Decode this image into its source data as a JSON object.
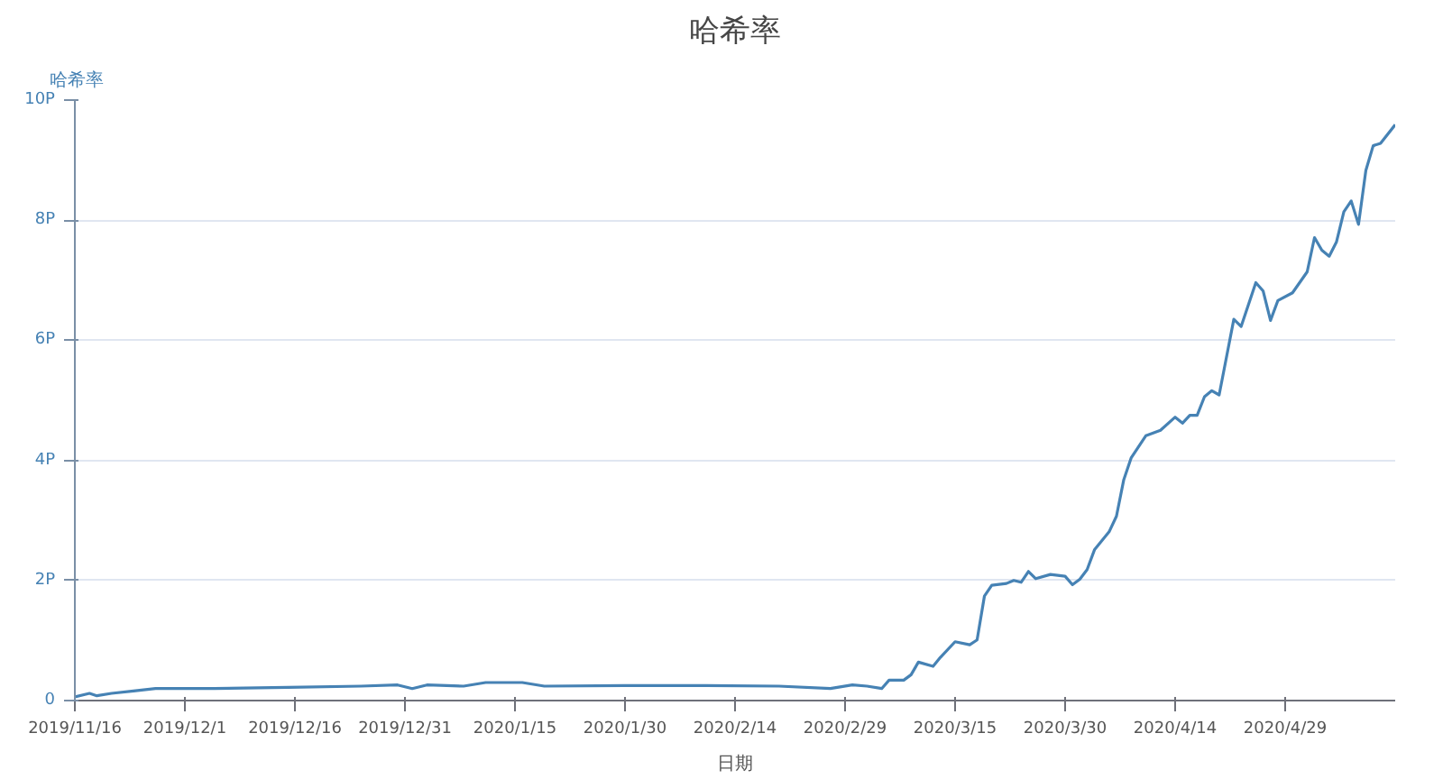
{
  "chart_data": {
    "type": "line",
    "title": "哈希率",
    "xlabel": "日期",
    "ylabel": "哈希率",
    "x": [
      "2019-11-16",
      "2019-11-18",
      "2019-11-19",
      "2019-11-21",
      "2019-11-24",
      "2019-11-27",
      "2019-12-05",
      "2019-12-15",
      "2019-12-25",
      "2019-12-30",
      "2020-01-01",
      "2020-01-03",
      "2020-01-08",
      "2020-01-11",
      "2020-01-16",
      "2020-01-19",
      "2020-01-30",
      "2020-02-10",
      "2020-02-20",
      "2020-02-27",
      "2020-03-01",
      "2020-03-03",
      "2020-03-05",
      "2020-03-06",
      "2020-03-08",
      "2020-03-09",
      "2020-03-10",
      "2020-03-12",
      "2020-03-13",
      "2020-03-15",
      "2020-03-17",
      "2020-03-18",
      "2020-03-19",
      "2020-03-20",
      "2020-03-22",
      "2020-03-23",
      "2020-03-24",
      "2020-03-25",
      "2020-03-26",
      "2020-03-28",
      "2020-03-30",
      "2020-03-31",
      "2020-04-01",
      "2020-04-02",
      "2020-04-03",
      "2020-04-04",
      "2020-04-05",
      "2020-04-06",
      "2020-04-07",
      "2020-04-08",
      "2020-04-10",
      "2020-04-12",
      "2020-04-14",
      "2020-04-15",
      "2020-04-16",
      "2020-04-17",
      "2020-04-18",
      "2020-04-19",
      "2020-04-20",
      "2020-04-22",
      "2020-04-23",
      "2020-04-25",
      "2020-04-26",
      "2020-04-27",
      "2020-04-28",
      "2020-04-30",
      "2020-05-02",
      "2020-05-03",
      "2020-05-04",
      "2020-05-05",
      "2020-05-06",
      "2020-05-07",
      "2020-05-08",
      "2020-05-09",
      "2020-05-10",
      "2020-05-11",
      "2020-05-12",
      "2020-05-14"
    ],
    "series": [
      {
        "color": "#4682b4",
        "values": [
          0.06,
          0.12,
          0.08,
          0.12,
          0.16,
          0.2,
          0.2,
          0.22,
          0.24,
          0.26,
          0.2,
          0.26,
          0.24,
          0.3,
          0.3,
          0.24,
          0.25,
          0.25,
          0.24,
          0.2,
          0.26,
          0.24,
          0.2,
          0.34,
          0.34,
          0.43,
          0.64,
          0.57,
          0.72,
          0.98,
          0.93,
          1.01,
          1.74,
          1.92,
          1.95,
          2.0,
          1.97,
          2.15,
          2.03,
          2.1,
          2.07,
          1.93,
          2.02,
          2.18,
          2.51,
          2.66,
          2.81,
          3.07,
          3.68,
          4.04,
          4.41,
          4.5,
          4.72,
          4.62,
          4.75,
          4.75,
          5.06,
          5.16,
          5.09,
          6.35,
          6.23,
          6.96,
          6.82,
          6.33,
          6.66,
          6.79,
          7.14,
          7.71,
          7.5,
          7.4,
          7.64,
          8.14,
          8.32,
          7.93,
          8.83,
          9.24,
          9.28,
          9.59
        ]
      }
    ],
    "xlim": [
      "2019-11-16",
      "2020-05-14"
    ],
    "xticks": [
      {
        "value": "2019-11-16",
        "label": "2019/11/16"
      },
      {
        "value": "2019-12-01",
        "label": "2019/12/1"
      },
      {
        "value": "2019-12-16",
        "label": "2019/12/16"
      },
      {
        "value": "2019-12-31",
        "label": "2019/12/31"
      },
      {
        "value": "2020-01-15",
        "label": "2020/1/15"
      },
      {
        "value": "2020-01-30",
        "label": "2020/1/30"
      },
      {
        "value": "2020-02-14",
        "label": "2020/2/14"
      },
      {
        "value": "2020-02-29",
        "label": "2020/2/29"
      },
      {
        "value": "2020-03-15",
        "label": "2020/3/15"
      },
      {
        "value": "2020-03-30",
        "label": "2020/3/30"
      },
      {
        "value": "2020-04-14",
        "label": "2020/4/14"
      },
      {
        "value": "2020-04-29",
        "label": "2020/4/29"
      }
    ],
    "ylim": [
      0,
      10
    ],
    "yticks": [
      0,
      {
        "value": 2,
        "label": "2P"
      },
      {
        "value": 4,
        "label": "4P"
      },
      {
        "value": 6,
        "label": "6P"
      },
      {
        "value": 8,
        "label": "8P"
      },
      {
        "value": 10,
        "label": "10P"
      }
    ],
    "grid": "y",
    "marker": "none",
    "line_style": "solid"
  }
}
